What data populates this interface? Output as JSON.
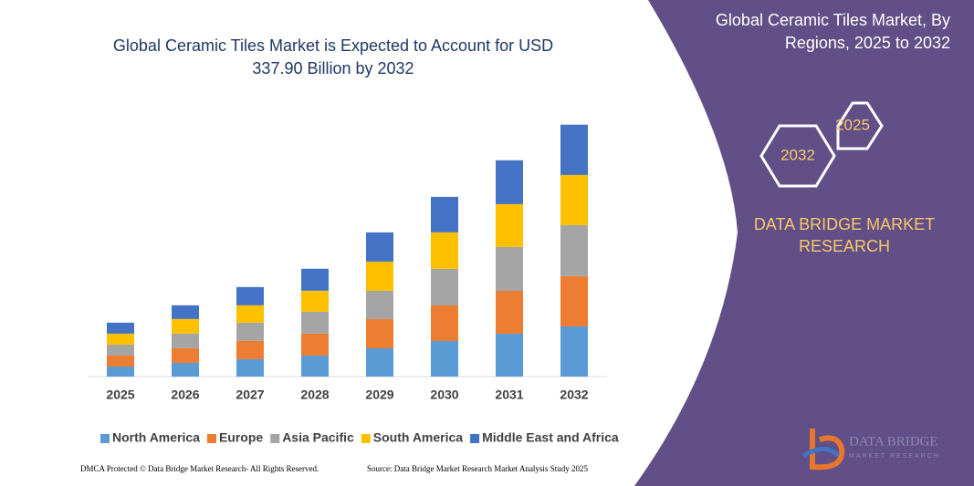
{
  "chart_data": {
    "type": "bar",
    "stacked": true,
    "title": "Global Ceramic Tiles Market is Expected to Account for USD 337.90 Billion by 2032",
    "categories": [
      "2025",
      "2026",
      "2027",
      "2028",
      "2029",
      "2030",
      "2031",
      "2032"
    ],
    "series": [
      {
        "name": "North America",
        "color": "#5b9bd5",
        "values": [
          13.5,
          18.4,
          23.3,
          28.2,
          37.9,
          47.7,
          57.5,
          67.3
        ]
      },
      {
        "name": "Europe",
        "color": "#ed7d31",
        "values": [
          14.7,
          19.6,
          24.5,
          29.4,
          39.2,
          47.7,
          57.5,
          67.3
        ]
      },
      {
        "name": "Asia Pacific",
        "color": "#a5a5a5",
        "values": [
          14.7,
          19.6,
          24.5,
          29.4,
          37.9,
          49.0,
          58.8,
          68.5
        ]
      },
      {
        "name": "South America",
        "color": "#ffc000",
        "values": [
          14.7,
          19.6,
          23.3,
          28.2,
          39.2,
          49.0,
          57.5,
          67.3
        ]
      },
      {
        "name": "Middle East and Africa",
        "color": "#4472c4",
        "values": [
          14.7,
          18.4,
          24.5,
          29.4,
          39.2,
          47.7,
          58.8,
          67.5
        ]
      }
    ],
    "ylim": [
      0,
      340
    ]
  },
  "panel": {
    "title": "Global Ceramic Tiles Market, By Regions, 2025 to 2032",
    "hex_front": "2032",
    "hex_back": "2025",
    "brand": "DATA BRIDGE MARKET RESEARCH"
  },
  "logo": {
    "name": "DATA BRIDGE",
    "tagline": "MARKET RESEARCH"
  },
  "footer": {
    "left": "DMCA Protected © Data Bridge Market Research- All Rights Reserved.",
    "right": "Source: Data Bridge Market Research Market Analysis Study 2025"
  }
}
